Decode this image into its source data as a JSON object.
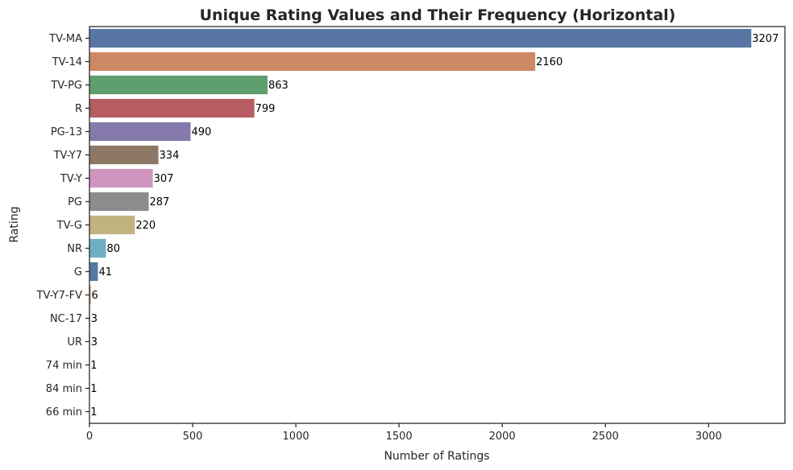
{
  "chart_data": {
    "type": "bar",
    "orientation": "horizontal",
    "title": "Unique Rating Values and Their Frequency (Horizontal)",
    "xlabel": "Number of Ratings",
    "ylabel": "Rating",
    "xlim": [
      0,
      3370
    ],
    "xticks": [
      0,
      500,
      1000,
      1500,
      2000,
      2500,
      3000
    ],
    "grid": false,
    "categories": [
      "TV-MA",
      "TV-14",
      "TV-PG",
      "R",
      "PG-13",
      "TV-Y7",
      "TV-Y",
      "PG",
      "TV-G",
      "NR",
      "G",
      "TV-Y7-FV",
      "NC-17",
      "UR",
      "74 min",
      "84 min",
      "66 min"
    ],
    "values": [
      3207,
      2160,
      863,
      799,
      490,
      334,
      307,
      287,
      220,
      80,
      41,
      6,
      3,
      3,
      1,
      1,
      1
    ],
    "colors": [
      "#5875a4",
      "#cc8963",
      "#5f9e6e",
      "#b55d60",
      "#857aab",
      "#8d7866",
      "#d095bf",
      "#8c8c8c",
      "#c1b37f",
      "#71aec0",
      "#5875a4",
      "#cc8963",
      "#5f9e6e",
      "#b55d60",
      "#857aab",
      "#8d7866",
      "#d095bf"
    ]
  }
}
